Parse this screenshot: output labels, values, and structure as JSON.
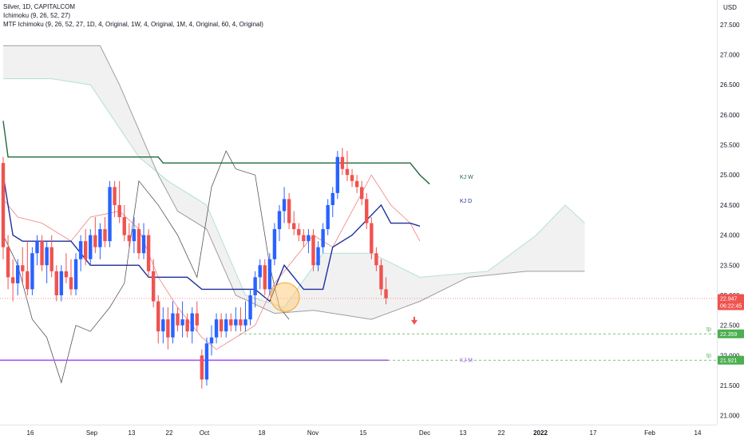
{
  "header": {
    "symbol": "Silver, 1D, CAPITALCOM",
    "indicator1": "Ichimoku (9, 26, 52, 27)",
    "indicator2": "MTF Ichimoku (9, 26, 52, 27, 1D, 4, Original, 1W, 4, Original, 1M, 4, Original, 60, 4, Original)"
  },
  "currency": "USD",
  "chart_data": {
    "type": "candlestick",
    "title": "Silver, 1D, CAPITALCOM",
    "ylim": [
      20.85,
      27.75
    ],
    "y_ticks": [
      21.0,
      21.5,
      22.0,
      22.5,
      23.0,
      23.5,
      24.0,
      24.5,
      25.0,
      25.5,
      26.0,
      26.5,
      27.0,
      27.5
    ],
    "y_tick_labels": [
      "21.000",
      "21.500",
      "22.000",
      "22.500",
      "23.000",
      "23.500",
      "24.000",
      "24.500",
      "25.000",
      "25.500",
      "26.000",
      "26.500",
      "27.000",
      "27.500"
    ],
    "x_tick_labels": [
      "16",
      "Sep",
      "13",
      "22",
      "Oct",
      "18",
      "Nov",
      "15",
      "Dec",
      "13",
      "22",
      "2022",
      "17",
      "Feb",
      "14"
    ],
    "x_tick_bold": [
      false,
      false,
      false,
      false,
      false,
      false,
      false,
      false,
      false,
      false,
      false,
      true,
      false,
      false,
      false
    ],
    "candles": [
      {
        "o": 25.2,
        "h": 25.3,
        "l": 23.6,
        "c": 23.8
      },
      {
        "o": 23.8,
        "h": 24.0,
        "l": 23.1,
        "c": 23.3
      },
      {
        "o": 23.3,
        "h": 23.6,
        "l": 22.9,
        "c": 23.2
      },
      {
        "o": 23.2,
        "h": 23.6,
        "l": 23.0,
        "c": 23.5
      },
      {
        "o": 23.5,
        "h": 23.8,
        "l": 23.2,
        "c": 23.4
      },
      {
        "o": 23.4,
        "h": 23.9,
        "l": 23.0,
        "c": 23.1
      },
      {
        "o": 23.1,
        "h": 23.8,
        "l": 23.0,
        "c": 23.7
      },
      {
        "o": 23.7,
        "h": 24.0,
        "l": 23.5,
        "c": 23.9
      },
      {
        "o": 23.9,
        "h": 24.0,
        "l": 23.4,
        "c": 23.5
      },
      {
        "o": 23.5,
        "h": 23.9,
        "l": 23.2,
        "c": 23.8
      },
      {
        "o": 23.8,
        "h": 24.0,
        "l": 23.3,
        "c": 23.4
      },
      {
        "o": 23.4,
        "h": 23.5,
        "l": 22.9,
        "c": 23.0
      },
      {
        "o": 23.0,
        "h": 23.5,
        "l": 22.9,
        "c": 23.4
      },
      {
        "o": 23.4,
        "h": 23.7,
        "l": 23.2,
        "c": 23.3
      },
      {
        "o": 23.3,
        "h": 23.6,
        "l": 23.0,
        "c": 23.1
      },
      {
        "o": 23.1,
        "h": 23.7,
        "l": 23.0,
        "c": 23.6
      },
      {
        "o": 23.6,
        "h": 24.0,
        "l": 23.4,
        "c": 23.9
      },
      {
        "o": 23.9,
        "h": 24.1,
        "l": 23.5,
        "c": 23.6
      },
      {
        "o": 23.6,
        "h": 24.1,
        "l": 23.5,
        "c": 24.0
      },
      {
        "o": 24.0,
        "h": 24.3,
        "l": 23.7,
        "c": 23.8
      },
      {
        "o": 23.8,
        "h": 24.2,
        "l": 23.6,
        "c": 24.1
      },
      {
        "o": 24.1,
        "h": 24.3,
        "l": 23.8,
        "c": 23.9
      },
      {
        "o": 23.9,
        "h": 24.9,
        "l": 23.8,
        "c": 24.8
      },
      {
        "o": 24.8,
        "h": 24.9,
        "l": 24.3,
        "c": 24.5
      },
      {
        "o": 24.5,
        "h": 24.9,
        "l": 24.2,
        "c": 24.3
      },
      {
        "o": 24.3,
        "h": 24.5,
        "l": 23.9,
        "c": 24.0
      },
      {
        "o": 24.0,
        "h": 24.2,
        "l": 23.8,
        "c": 23.9
      },
      {
        "o": 23.9,
        "h": 24.3,
        "l": 23.7,
        "c": 24.1
      },
      {
        "o": 24.1,
        "h": 24.2,
        "l": 23.6,
        "c": 23.7
      },
      {
        "o": 23.7,
        "h": 24.2,
        "l": 23.6,
        "c": 24.0
      },
      {
        "o": 24.0,
        "h": 24.1,
        "l": 23.3,
        "c": 23.4
      },
      {
        "o": 23.4,
        "h": 23.6,
        "l": 22.8,
        "c": 22.9
      },
      {
        "o": 22.9,
        "h": 23.0,
        "l": 22.2,
        "c": 22.4
      },
      {
        "o": 22.4,
        "h": 22.8,
        "l": 22.2,
        "c": 22.6
      },
      {
        "o": 22.6,
        "h": 22.8,
        "l": 22.1,
        "c": 22.3
      },
      {
        "o": 22.3,
        "h": 22.9,
        "l": 22.2,
        "c": 22.7
      },
      {
        "o": 22.7,
        "h": 22.8,
        "l": 22.4,
        "c": 22.5
      },
      {
        "o": 22.5,
        "h": 22.9,
        "l": 22.3,
        "c": 22.6
      },
      {
        "o": 22.6,
        "h": 22.7,
        "l": 22.3,
        "c": 22.4
      },
      {
        "o": 22.4,
        "h": 22.8,
        "l": 22.2,
        "c": 22.7
      },
      {
        "o": 22.7,
        "h": 22.9,
        "l": 22.4,
        "c": 22.5
      },
      {
        "o": 22.0,
        "h": 22.1,
        "l": 21.45,
        "c": 21.6
      },
      {
        "o": 21.6,
        "h": 22.3,
        "l": 21.5,
        "c": 22.2
      },
      {
        "o": 22.2,
        "h": 22.5,
        "l": 22.0,
        "c": 22.3
      },
      {
        "o": 22.3,
        "h": 22.7,
        "l": 22.2,
        "c": 22.6
      },
      {
        "o": 22.6,
        "h": 22.7,
        "l": 22.3,
        "c": 22.4
      },
      {
        "o": 22.4,
        "h": 22.7,
        "l": 22.3,
        "c": 22.6
      },
      {
        "o": 22.6,
        "h": 22.7,
        "l": 22.4,
        "c": 22.5
      },
      {
        "o": 22.5,
        "h": 22.8,
        "l": 22.4,
        "c": 22.6
      },
      {
        "o": 22.6,
        "h": 22.8,
        "l": 22.4,
        "c": 22.5
      },
      {
        "o": 22.5,
        "h": 22.9,
        "l": 22.4,
        "c": 22.6
      },
      {
        "o": 22.6,
        "h": 23.1,
        "l": 22.5,
        "c": 23.0
      },
      {
        "o": 23.0,
        "h": 23.4,
        "l": 22.8,
        "c": 23.3
      },
      {
        "o": 23.3,
        "h": 23.6,
        "l": 23.1,
        "c": 23.5
      },
      {
        "o": 23.5,
        "h": 23.6,
        "l": 23.0,
        "c": 23.1
      },
      {
        "o": 23.1,
        "h": 23.7,
        "l": 23.0,
        "c": 23.6
      },
      {
        "o": 23.6,
        "h": 24.2,
        "l": 23.5,
        "c": 24.1
      },
      {
        "o": 24.1,
        "h": 24.5,
        "l": 23.9,
        "c": 24.4
      },
      {
        "o": 24.4,
        "h": 24.8,
        "l": 24.2,
        "c": 24.6
      },
      {
        "o": 24.6,
        "h": 24.7,
        "l": 24.1,
        "c": 24.2
      },
      {
        "o": 24.2,
        "h": 24.4,
        "l": 24.0,
        "c": 24.1
      },
      {
        "o": 24.1,
        "h": 24.2,
        "l": 23.9,
        "c": 24.0
      },
      {
        "o": 24.0,
        "h": 24.1,
        "l": 23.8,
        "c": 23.9
      },
      {
        "o": 23.9,
        "h": 24.1,
        "l": 23.7,
        "c": 24.0
      },
      {
        "o": 24.0,
        "h": 24.1,
        "l": 23.4,
        "c": 23.5
      },
      {
        "o": 23.5,
        "h": 23.9,
        "l": 23.4,
        "c": 23.8
      },
      {
        "o": 23.8,
        "h": 24.2,
        "l": 23.7,
        "c": 24.1
      },
      {
        "o": 24.1,
        "h": 24.6,
        "l": 24.0,
        "c": 24.5
      },
      {
        "o": 24.5,
        "h": 24.8,
        "l": 24.3,
        "c": 24.7
      },
      {
        "o": 24.7,
        "h": 25.4,
        "l": 24.6,
        "c": 25.3
      },
      {
        "o": 25.3,
        "h": 25.45,
        "l": 25.0,
        "c": 25.1
      },
      {
        "o": 25.1,
        "h": 25.4,
        "l": 24.9,
        "c": 25.0
      },
      {
        "o": 25.0,
        "h": 25.1,
        "l": 24.8,
        "c": 24.9
      },
      {
        "o": 24.9,
        "h": 25.0,
        "l": 24.7,
        "c": 24.8
      },
      {
        "o": 24.8,
        "h": 24.9,
        "l": 24.5,
        "c": 24.6
      },
      {
        "o": 24.6,
        "h": 24.7,
        "l": 24.1,
        "c": 24.2
      },
      {
        "o": 24.2,
        "h": 24.3,
        "l": 23.6,
        "c": 23.7
      },
      {
        "o": 23.7,
        "h": 23.8,
        "l": 23.4,
        "c": 23.5
      },
      {
        "o": 23.5,
        "h": 23.6,
        "l": 23.0,
        "c": 23.1
      },
      {
        "o": 23.1,
        "h": 23.3,
        "l": 22.85,
        "c": 22.95
      }
    ],
    "kijun_weekly": {
      "name": "KJ W",
      "color": "#1e6b3a",
      "values": [
        [
          0,
          25.9
        ],
        [
          1,
          25.3
        ],
        [
          32,
          25.3
        ],
        [
          33,
          25.2
        ],
        [
          84,
          25.2
        ],
        [
          86,
          25.0
        ],
        [
          88,
          24.85
        ]
      ]
    },
    "kijun_daily": {
      "name": "KJ D",
      "color": "#1f2f9b",
      "values": [
        [
          0,
          25.0
        ],
        [
          2,
          24.0
        ],
        [
          4,
          23.9
        ],
        [
          14,
          23.9
        ],
        [
          18,
          23.5
        ],
        [
          28,
          23.5
        ],
        [
          30,
          23.3
        ],
        [
          38,
          23.3
        ],
        [
          41,
          23.1
        ],
        [
          52,
          23.1
        ],
        [
          55,
          22.9
        ],
        [
          58,
          23.5
        ],
        [
          62,
          23.1
        ],
        [
          66,
          23.1
        ],
        [
          68,
          23.8
        ],
        [
          72,
          24.0
        ],
        [
          78,
          24.5
        ],
        [
          80,
          24.2
        ],
        [
          84,
          24.2
        ],
        [
          86,
          24.15
        ]
      ]
    },
    "kijun_monthly": {
      "name": "KJ M",
      "color": "#a855f7",
      "value": 21.92
    },
    "tenkan": {
      "color": "#f08080",
      "values": [
        [
          0,
          24.6
        ],
        [
          3,
          24.3
        ],
        [
          8,
          24.2
        ],
        [
          14,
          23.9
        ],
        [
          18,
          24.3
        ],
        [
          24,
          24.4
        ],
        [
          28,
          24.1
        ],
        [
          32,
          23.3
        ],
        [
          36,
          22.8
        ],
        [
          41,
          22.3
        ],
        [
          44,
          22.1
        ],
        [
          48,
          22.3
        ],
        [
          52,
          22.5
        ],
        [
          56,
          23.2
        ],
        [
          60,
          23.6
        ],
        [
          64,
          24.0
        ],
        [
          68,
          23.8
        ],
        [
          72,
          24.4
        ],
        [
          76,
          25.0
        ],
        [
          80,
          24.5
        ],
        [
          84,
          24.2
        ],
        [
          86,
          23.9
        ]
      ]
    },
    "chikou": {
      "color": "#555555",
      "values": [
        [
          0,
          24.0
        ],
        [
          3,
          23.5
        ],
        [
          6,
          22.6
        ],
        [
          9,
          22.3
        ],
        [
          12,
          21.55
        ],
        [
          15,
          22.5
        ],
        [
          18,
          22.4
        ],
        [
          22,
          22.8
        ],
        [
          25,
          23.2
        ],
        [
          28,
          24.9
        ],
        [
          32,
          24.5
        ],
        [
          36,
          24.0
        ],
        [
          40,
          23.3
        ],
        [
          43,
          24.8
        ],
        [
          46,
          25.4
        ],
        [
          48,
          25.1
        ],
        [
          52,
          25.0
        ],
        [
          55,
          23.5
        ],
        [
          57,
          22.8
        ],
        [
          59,
          22.6
        ]
      ]
    },
    "cloud_span_a": {
      "color": "#b2dfdb",
      "values": [
        [
          0,
          26.6
        ],
        [
          10,
          26.6
        ],
        [
          18,
          26.5
        ],
        [
          28,
          25.3
        ],
        [
          34,
          24.9
        ],
        [
          42,
          24.5
        ],
        [
          50,
          23.0
        ],
        [
          58,
          22.8
        ],
        [
          66,
          23.7
        ],
        [
          76,
          23.7
        ],
        [
          86,
          23.3
        ],
        [
          100,
          23.4
        ],
        [
          110,
          24.0
        ],
        [
          116,
          24.5
        ],
        [
          120,
          24.2
        ]
      ]
    },
    "cloud_span_b": {
      "color": "#9e9e9e",
      "values": [
        [
          0,
          27.15
        ],
        [
          20,
          27.15
        ],
        [
          24,
          26.5
        ],
        [
          32,
          25.0
        ],
        [
          36,
          24.4
        ],
        [
          42,
          24.1
        ],
        [
          48,
          23.0
        ],
        [
          56,
          22.7
        ],
        [
          64,
          22.75
        ],
        [
          76,
          22.6
        ],
        [
          86,
          22.9
        ],
        [
          96,
          23.3
        ],
        [
          108,
          23.4
        ],
        [
          120,
          23.4
        ]
      ]
    },
    "last_price": {
      "value": 22.947,
      "label": "22.947",
      "countdown": "06:22:45",
      "color": "#ef5350"
    },
    "targets": [
      {
        "name": "tp",
        "value": 22.359,
        "label": "22.359",
        "color": "#4caf50"
      },
      {
        "name": "tp",
        "value": 21.921,
        "label": "21.921",
        "color": "#4caf50"
      }
    ],
    "grid": false,
    "legend": "top-left"
  }
}
